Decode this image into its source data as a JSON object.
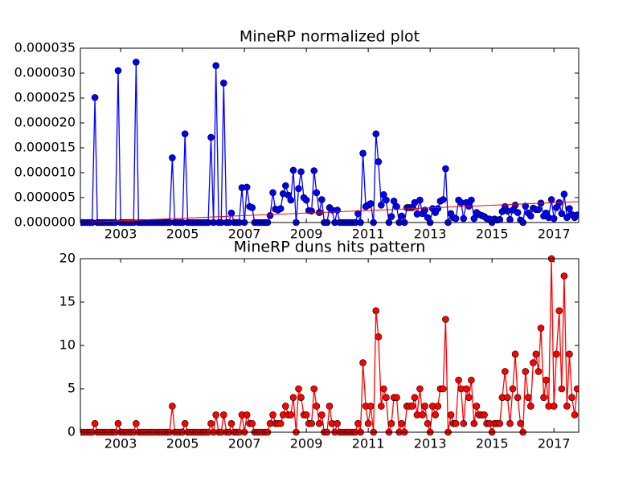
{
  "chart_data": [
    {
      "type": "line",
      "title": "MineRP normalized plot",
      "x": [
        2001.75,
        2001.83,
        2001.92,
        2002,
        2002.08,
        2002.17,
        2002.25,
        2002.33,
        2002.42,
        2002.5,
        2002.58,
        2002.67,
        2002.75,
        2002.83,
        2002.92,
        2003,
        2003.08,
        2003.17,
        2003.25,
        2003.33,
        2003.42,
        2003.5,
        2003.58,
        2003.67,
        2003.75,
        2003.83,
        2003.92,
        2004,
        2004.08,
        2004.17,
        2004.25,
        2004.33,
        2004.42,
        2004.5,
        2004.58,
        2004.67,
        2004.75,
        2004.83,
        2004.92,
        2005,
        2005.08,
        2005.17,
        2005.25,
        2005.33,
        2005.42,
        2005.5,
        2005.58,
        2005.67,
        2005.75,
        2005.83,
        2005.92,
        2006,
        2006.08,
        2006.17,
        2006.25,
        2006.33,
        2006.42,
        2006.5,
        2006.58,
        2006.67,
        2006.75,
        2006.83,
        2006.92,
        2007,
        2007.08,
        2007.17,
        2007.25,
        2007.33,
        2007.42,
        2007.5,
        2007.58,
        2007.67,
        2007.75,
        2007.83,
        2007.92,
        2008,
        2008.08,
        2008.17,
        2008.25,
        2008.33,
        2008.42,
        2008.5,
        2008.58,
        2008.67,
        2008.75,
        2008.83,
        2008.92,
        2009,
        2009.08,
        2009.17,
        2009.25,
        2009.33,
        2009.42,
        2009.5,
        2009.58,
        2009.67,
        2009.75,
        2009.83,
        2009.92,
        2010,
        2010.08,
        2010.17,
        2010.25,
        2010.33,
        2010.42,
        2010.5,
        2010.58,
        2010.67,
        2010.75,
        2010.83,
        2010.92,
        2011,
        2011.08,
        2011.17,
        2011.25,
        2011.33,
        2011.42,
        2011.5,
        2011.58,
        2011.67,
        2011.75,
        2011.83,
        2011.92,
        2012,
        2012.08,
        2012.17,
        2012.25,
        2012.33,
        2012.42,
        2012.5,
        2012.58,
        2012.67,
        2012.75,
        2012.83,
        2012.92,
        2013,
        2013.08,
        2013.17,
        2013.25,
        2013.33,
        2013.42,
        2013.5,
        2013.58,
        2013.67,
        2013.75,
        2013.83,
        2013.92,
        2014,
        2014.08,
        2014.17,
        2014.25,
        2014.33,
        2014.42,
        2014.5,
        2014.58,
        2014.67,
        2014.75,
        2014.83,
        2014.92,
        2015,
        2015.08,
        2015.17,
        2015.25,
        2015.33,
        2015.42,
        2015.5,
        2015.58,
        2015.67,
        2015.75,
        2015.83,
        2015.92,
        2016,
        2016.08,
        2016.17,
        2016.25,
        2016.33,
        2016.42,
        2016.5,
        2016.58,
        2016.67,
        2016.75,
        2016.83,
        2016.92,
        2017,
        2017.08,
        2017.17,
        2017.25,
        2017.33,
        2017.42,
        2017.5,
        2017.58,
        2017.67,
        2017.75
      ],
      "series": [
        {
          "color": "#0000ff",
          "values": [
            0,
            0,
            0,
            0,
            0,
            2.51e-05,
            0,
            0,
            0,
            0,
            0,
            0,
            0,
            0,
            3.05e-05,
            0,
            0,
            0,
            0,
            0,
            0,
            3.22e-05,
            0,
            0,
            0,
            0,
            0,
            0,
            0,
            0,
            0,
            0,
            0,
            0,
            0,
            1.3e-05,
            0,
            0,
            0,
            0,
            1.78e-05,
            0,
            0,
            0,
            0,
            0,
            0,
            0,
            0,
            0,
            1.71e-05,
            0,
            3.15e-05,
            0,
            0,
            2.8e-05,
            0,
            0,
            1.9e-06,
            0,
            0,
            0,
            7e-06,
            0,
            7.1e-06,
            3.2e-06,
            3e-06,
            0,
            0,
            0,
            0,
            0,
            0,
            1.4e-06,
            6e-06,
            2.7e-06,
            2.5e-06,
            2.8e-06,
            5.8e-06,
            7.4e-06,
            5.5e-06,
            4.5e-06,
            1.05e-05,
            0,
            6.8e-06,
            1.02e-05,
            5e-06,
            4.5e-06,
            2.4e-06,
            2.3e-06,
            1.04e-05,
            6e-06,
            2e-06,
            4.6e-06,
            0,
            0,
            3e-06,
            2.5e-06,
            0,
            2.5e-06,
            0,
            0,
            0,
            0,
            0,
            0,
            0,
            1.8e-06,
            0,
            1.39e-05,
            3.2e-06,
            3.5e-06,
            3.8e-06,
            0,
            1.78e-05,
            1.22e-05,
            3.5e-06,
            5.6e-06,
            4.5e-06,
            0,
            1.2e-06,
            4.3e-06,
            3.2e-06,
            0,
            1.3e-06,
            0,
            3e-06,
            3e-06,
            3e-06,
            4e-06,
            1.7e-06,
            4.5e-06,
            1.8e-06,
            2.5e-06,
            1e-06,
            0,
            2.8e-06,
            2e-06,
            2.8e-06,
            4.3e-06,
            4.6e-06,
            1.08e-05,
            0,
            1.8e-06,
            1e-06,
            8e-07,
            4.5e-06,
            4e-06,
            8e-07,
            4e-06,
            3.3e-06,
            4.5e-06,
            8e-07,
            2e-06,
            1.6e-06,
            1.4e-06,
            1.2e-06,
            8e-07,
            7e-07,
            0,
            7e-07,
            5e-07,
            6e-07,
            2.2e-06,
            3.2e-06,
            2.3e-06,
            6e-07,
            2.5e-06,
            3.5e-06,
            2e-06,
            5e-07,
            0,
            3.3e-06,
            1.9e-06,
            1.3e-06,
            2.9e-06,
            2.6e-06,
            2.6e-06,
            3.9e-06,
            1.3e-06,
            1.9e-06,
            1e-06,
            4.6e-06,
            8e-07,
            3e-06,
            4e-06,
            1.8e-06,
            5.7e-06,
            1e-06,
            2.8e-06,
            1.6e-06,
            1e-06,
            1.5e-06
          ]
        }
      ],
      "trend_line": {
        "color": "#ff0000",
        "x": [
          2001.7,
          2017.8
        ],
        "values": [
          0,
          4.2e-06
        ]
      },
      "xlim": [
        2001.7,
        2017.8
      ],
      "xticks": [
        2003,
        2005,
        2007,
        2009,
        2011,
        2013,
        2015,
        2017
      ],
      "ylim": [
        0,
        3.5e-05
      ],
      "yticks": [
        {
          "value": 0,
          "label": "0.000000"
        },
        {
          "value": 5e-06,
          "label": "0.000005"
        },
        {
          "value": 1e-05,
          "label": "0.000010"
        },
        {
          "value": 1.5e-05,
          "label": "0.000015"
        },
        {
          "value": 2e-05,
          "label": "0.000020"
        },
        {
          "value": 2.5e-05,
          "label": "0.000025"
        },
        {
          "value": 3e-05,
          "label": "0.000030"
        },
        {
          "value": 3.5e-05,
          "label": "0.000035"
        }
      ]
    },
    {
      "type": "line",
      "title": "MineRP duns hits pattern",
      "x": [
        2001.75,
        2001.83,
        2001.92,
        2002,
        2002.08,
        2002.17,
        2002.25,
        2002.33,
        2002.42,
        2002.5,
        2002.58,
        2002.67,
        2002.75,
        2002.83,
        2002.92,
        2003,
        2003.08,
        2003.17,
        2003.25,
        2003.33,
        2003.42,
        2003.5,
        2003.58,
        2003.67,
        2003.75,
        2003.83,
        2003.92,
        2004,
        2004.08,
        2004.17,
        2004.25,
        2004.33,
        2004.42,
        2004.5,
        2004.58,
        2004.67,
        2004.75,
        2004.83,
        2004.92,
        2005,
        2005.08,
        2005.17,
        2005.25,
        2005.33,
        2005.42,
        2005.5,
        2005.58,
        2005.67,
        2005.75,
        2005.83,
        2005.92,
        2006,
        2006.08,
        2006.17,
        2006.25,
        2006.33,
        2006.42,
        2006.5,
        2006.58,
        2006.67,
        2006.75,
        2006.83,
        2006.92,
        2007,
        2007.08,
        2007.17,
        2007.25,
        2007.33,
        2007.42,
        2007.5,
        2007.58,
        2007.67,
        2007.75,
        2007.83,
        2007.92,
        2008,
        2008.08,
        2008.17,
        2008.25,
        2008.33,
        2008.42,
        2008.5,
        2008.58,
        2008.67,
        2008.75,
        2008.83,
        2008.92,
        2009,
        2009.08,
        2009.17,
        2009.25,
        2009.33,
        2009.42,
        2009.5,
        2009.58,
        2009.67,
        2009.75,
        2009.83,
        2009.92,
        2010,
        2010.08,
        2010.17,
        2010.25,
        2010.33,
        2010.42,
        2010.5,
        2010.58,
        2010.67,
        2010.75,
        2010.83,
        2010.92,
        2011,
        2011.08,
        2011.17,
        2011.25,
        2011.33,
        2011.42,
        2011.5,
        2011.58,
        2011.67,
        2011.75,
        2011.83,
        2011.92,
        2012,
        2012.08,
        2012.17,
        2012.25,
        2012.33,
        2012.42,
        2012.5,
        2012.58,
        2012.67,
        2012.75,
        2012.83,
        2012.92,
        2013,
        2013.08,
        2013.17,
        2013.25,
        2013.33,
        2013.42,
        2013.5,
        2013.58,
        2013.67,
        2013.75,
        2013.83,
        2013.92,
        2014,
        2014.08,
        2014.17,
        2014.25,
        2014.33,
        2014.42,
        2014.5,
        2014.58,
        2014.67,
        2014.75,
        2014.83,
        2014.92,
        2015,
        2015.08,
        2015.17,
        2015.25,
        2015.33,
        2015.42,
        2015.5,
        2015.58,
        2015.67,
        2015.75,
        2015.83,
        2015.92,
        2016,
        2016.08,
        2016.17,
        2016.25,
        2016.33,
        2016.42,
        2016.5,
        2016.58,
        2016.67,
        2016.75,
        2016.83,
        2016.92,
        2017,
        2017.08,
        2017.17,
        2017.25,
        2017.33,
        2017.42,
        2017.5,
        2017.58,
        2017.67,
        2017.75
      ],
      "series": [
        {
          "color": "#ff0000",
          "values": [
            0,
            0,
            0,
            0,
            0,
            1,
            0,
            0,
            0,
            0,
            0,
            0,
            0,
            0,
            1,
            0,
            0,
            0,
            0,
            0,
            0,
            1,
            0,
            0,
            0,
            0,
            0,
            0,
            0,
            0,
            0,
            0,
            0,
            0,
            0,
            3,
            0,
            0,
            0,
            0,
            1,
            0,
            0,
            0,
            0,
            0,
            0,
            0,
            0,
            0,
            1,
            0,
            2,
            0,
            0,
            2,
            0,
            0,
            1,
            0,
            0,
            0,
            2,
            0,
            2,
            1,
            1,
            0,
            0,
            0,
            0,
            0,
            0,
            1,
            2,
            1,
            1,
            1,
            2,
            3,
            2,
            2,
            4,
            0,
            5,
            4,
            2,
            2,
            1,
            1,
            5,
            3,
            1,
            2,
            0,
            0,
            3,
            1,
            0,
            1,
            0,
            0,
            0,
            0,
            0,
            0,
            0,
            1,
            0,
            8,
            3,
            1,
            3,
            0,
            14,
            11,
            3,
            5,
            4,
            0,
            1,
            4,
            4,
            0,
            1,
            0,
            3,
            3,
            3,
            4,
            2,
            5,
            2,
            3,
            1,
            0,
            3,
            2,
            3,
            5,
            5,
            13,
            0,
            2,
            1,
            1,
            6,
            5,
            1,
            5,
            4,
            6,
            1,
            3,
            2,
            2,
            2,
            1,
            1,
            0,
            1,
            1,
            1,
            4,
            7,
            4,
            1,
            5,
            9,
            4,
            1,
            0,
            7,
            4,
            3,
            8,
            9,
            7,
            12,
            4,
            6,
            3,
            20,
            3,
            9,
            14,
            5,
            18,
            3,
            9,
            4,
            2,
            5
          ]
        }
      ],
      "xlim": [
        2001.7,
        2017.8
      ],
      "xticks": [
        2003,
        2005,
        2007,
        2009,
        2011,
        2013,
        2015,
        2017
      ],
      "ylim": [
        0,
        20
      ],
      "yticks": [
        0,
        5,
        10,
        15,
        20
      ]
    }
  ]
}
